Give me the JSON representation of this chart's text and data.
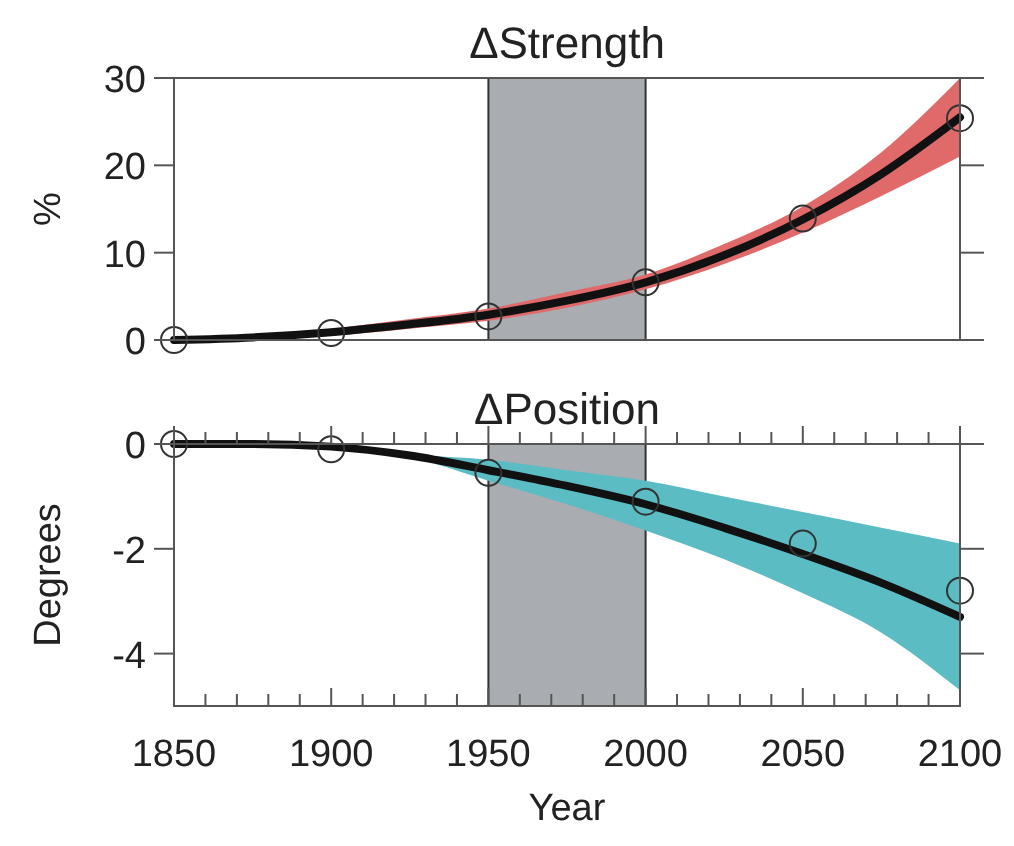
{
  "chart_data": [
    {
      "type": "line",
      "title": "ΔStrength",
      "ylabel": "%",
      "xlim": [
        1850,
        2100
      ],
      "ylim": [
        0,
        30
      ],
      "xticks": [
        1850,
        1900,
        1950,
        2000,
        2050,
        2100
      ],
      "yticks": [
        0,
        10,
        20,
        30
      ],
      "tick_labels": "y",
      "bands": [
        {
          "axis": "x",
          "from": 1950,
          "to": 2000,
          "color": "#a9acb0"
        }
      ],
      "series": [
        {
          "color": "#111111",
          "colors": [
            "#e06a6a",
            "#e06a6a",
            "#e06a6a",
            "#e06a6a",
            "#e06a6a",
            "#e06a6a",
            "#e06a6a",
            "#e06a6a",
            "#e06a6a",
            "#e06a6a",
            "#e06a6a"
          ],
          "marker": "none",
          "x": [
            1850,
            1875,
            1900,
            1925,
            1950,
            1975,
            2000,
            2025,
            2050,
            2075,
            2100
          ],
          "values": [
            0,
            0.3,
            0.9,
            1.8,
            2.9,
            4.5,
            6.6,
            9.7,
            13.8,
            19,
            25.5
          ],
          "lower": [
            0,
            0.1,
            0.5,
            1.3,
            2.2,
            3.7,
            5.8,
            8.7,
            12.3,
            16.5,
            21
          ],
          "upper": [
            0,
            0.5,
            1.3,
            2.4,
            3.6,
            5.5,
            7.5,
            11,
            15.3,
            21.5,
            30
          ]
        },
        {
          "type": "scatter",
          "color": "#333333",
          "marker": "circle",
          "x": [
            1850,
            1900,
            1950,
            2000,
            2050,
            2100
          ],
          "values": [
            0,
            0.8,
            2.7,
            6.6,
            13.9,
            25.4
          ]
        }
      ]
    },
    {
      "type": "line",
      "title": "ΔPosition",
      "xlabel": "Year",
      "ylabel": "Degrees",
      "xlim": [
        1850,
        2100
      ],
      "ylim": [
        -5,
        0
      ],
      "xticks": [
        1850,
        {
          "value": 1860,
          "label": null
        },
        {
          "value": 1870,
          "label": null
        },
        {
          "value": 1880,
          "label": null
        },
        {
          "value": 1890,
          "label": null
        },
        1900,
        {
          "value": 1910,
          "label": null
        },
        {
          "value": 1920,
          "label": null
        },
        {
          "value": 1930,
          "label": null
        },
        {
          "value": 1940,
          "label": null
        },
        1950,
        {
          "value": 1960,
          "label": null
        },
        {
          "value": 1970,
          "label": null
        },
        {
          "value": 1980,
          "label": null
        },
        {
          "value": 1990,
          "label": null
        },
        2000,
        {
          "value": 2010,
          "label": null
        },
        {
          "value": 2020,
          "label": null
        },
        {
          "value": 2030,
          "label": null
        },
        {
          "value": 2040,
          "label": null
        },
        2050,
        {
          "value": 2060,
          "label": null
        },
        {
          "value": 2070,
          "label": null
        },
        {
          "value": 2080,
          "label": null
        },
        {
          "value": 2090,
          "label": null
        },
        2100
      ],
      "yticks": [
        0,
        -2,
        -4
      ],
      "bands": [
        {
          "axis": "x",
          "from": 1950,
          "to": 2000,
          "color": "#a9acb0"
        }
      ],
      "series": [
        {
          "color": "#111111",
          "colors": [
            "#5bbcc4",
            "#5bbcc4",
            "#5bbcc4",
            "#5bbcc4",
            "#5bbcc4",
            "#5bbcc4",
            "#5bbcc4",
            "#5bbcc4",
            "#5bbcc4",
            "#5bbcc4",
            "#5bbcc4"
          ],
          "marker": "none",
          "x": [
            1850,
            1875,
            1900,
            1925,
            1950,
            1975,
            2000,
            2025,
            2050,
            2075,
            2100
          ],
          "values": [
            0,
            0,
            -0.05,
            -0.22,
            -0.5,
            -0.8,
            -1.15,
            -1.6,
            -2.1,
            -2.65,
            -3.3
          ],
          "lower": [
            0,
            0,
            -0.05,
            -0.25,
            -0.7,
            -1.15,
            -1.65,
            -2.2,
            -2.85,
            -3.6,
            -4.7
          ],
          "upper": [
            0,
            0,
            -0.05,
            -0.2,
            -0.3,
            -0.5,
            -0.7,
            -1,
            -1.3,
            -1.6,
            -1.9
          ]
        },
        {
          "type": "scatter",
          "color": "#333333",
          "marker": "circle",
          "x": [
            1850,
            1900,
            1950,
            2000,
            2050,
            2100
          ],
          "values": [
            0,
            -0.1,
            -0.55,
            -1.1,
            -1.9,
            -2.8
          ]
        }
      ]
    }
  ]
}
